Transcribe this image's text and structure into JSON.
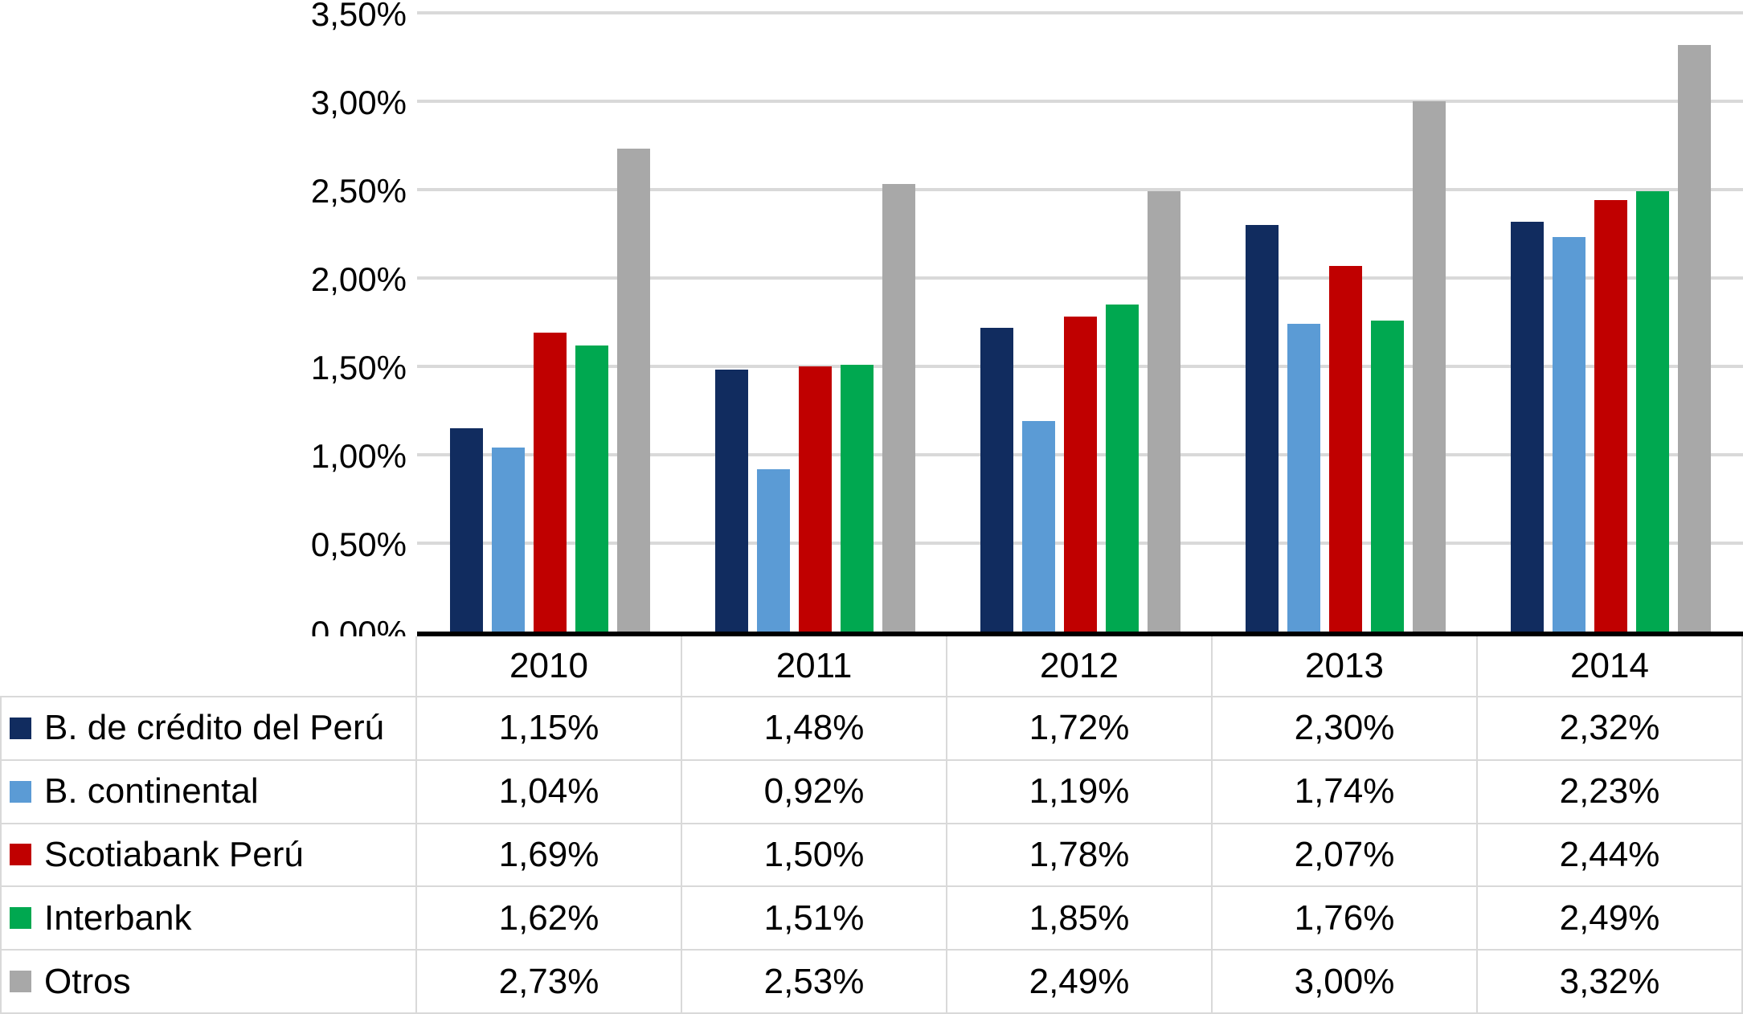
{
  "chart_data": {
    "type": "bar",
    "title": "",
    "categories": [
      "2010",
      "2011",
      "2012",
      "2013",
      "2014"
    ],
    "series": [
      {
        "name": "B. de crédito del Perú",
        "color": "#112C5F",
        "values": [
          1.15,
          1.48,
          1.72,
          2.3,
          2.32
        ],
        "labels": [
          "1,15%",
          "1,48%",
          "1,72%",
          "2,30%",
          "2,32%"
        ]
      },
      {
        "name": "B. continental",
        "color": "#5B9BD5",
        "values": [
          1.04,
          0.92,
          1.19,
          1.74,
          2.23
        ],
        "labels": [
          "1,04%",
          "0,92%",
          "1,19%",
          "1,74%",
          "2,23%"
        ]
      },
      {
        "name": "Scotiabank Perú",
        "color": "#C00000",
        "values": [
          1.69,
          1.5,
          1.78,
          2.07,
          2.44
        ],
        "labels": [
          "1,69%",
          "1,50%",
          "1,78%",
          "2,07%",
          "2,44%"
        ]
      },
      {
        "name": "Interbank",
        "color": "#00A850",
        "values": [
          1.62,
          1.51,
          1.85,
          1.76,
          2.49
        ],
        "labels": [
          "1,62%",
          "1,51%",
          "1,85%",
          "1,76%",
          "2,49%"
        ]
      },
      {
        "name": "Otros",
        "color": "#A8A8A8",
        "values": [
          2.73,
          2.53,
          2.49,
          3.0,
          3.32
        ],
        "labels": [
          "2,73%",
          "2,53%",
          "2,49%",
          "3,00%",
          "3,32%"
        ]
      }
    ],
    "y_axis": {
      "min": 0,
      "max": 3.5,
      "step": 0.5,
      "tick_labels": [
        "0,00%",
        "0,50%",
        "1,00%",
        "1,50%",
        "2,00%",
        "2,50%",
        "3,00%",
        "3,50%"
      ]
    },
    "grid": true,
    "legend_position": "table-left-column",
    "colors": {
      "gridline": "#D9D9D9",
      "axis_line": "#000000",
      "table_border": "#D9D9D9",
      "background": "#FFFFFF"
    }
  }
}
